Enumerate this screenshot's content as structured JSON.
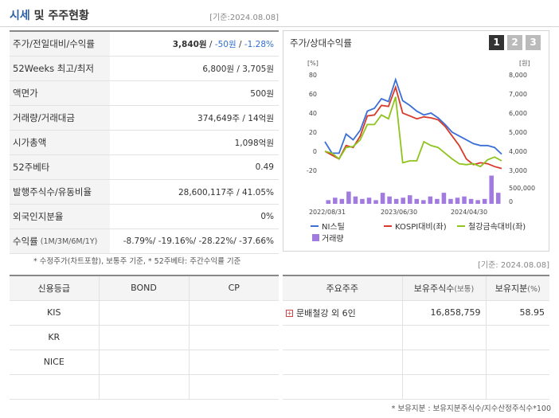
{
  "header": {
    "title_main": "시세",
    "title_rest": "및 주주현황",
    "date": "[기준:2024.08.08]"
  },
  "quote_rows": [
    {
      "label": "주가/전일대비/수익률",
      "label_small": "",
      "value_parts": [
        "3,840원",
        " / ",
        "-50원",
        " / ",
        "-1.28%"
      ]
    },
    {
      "label": "52Weeks 최고/최저",
      "label_small": "",
      "value": "6,800원 / 3,705원"
    },
    {
      "label": "액면가",
      "label_small": "",
      "value": "500원"
    },
    {
      "label": "거래량/거래대금",
      "label_small": "",
      "value": "374,649주 / 14억원"
    },
    {
      "label": "시가총액",
      "label_small": "",
      "value": "1,098억원"
    },
    {
      "label": "52주베타",
      "label_small": "",
      "value": "0.49"
    },
    {
      "label": "발행주식수/유동비율",
      "label_small": "",
      "value": "28,600,117주 / 41.05%"
    },
    {
      "label": "외국인지분율",
      "label_small": "",
      "value": "0%"
    },
    {
      "label": "수익률",
      "label_small": "(1M/3M/6M/1Y)",
      "value": "-8.79%/ -19.16%/ -28.22%/ -37.66%"
    }
  ],
  "note1": "* 수정주가(차트포함), 보통주 기준, * 52주베타: 주간수익률 기준",
  "chart_panel": {
    "title": "주가/상대수익률",
    "tabs": [
      "1",
      "2",
      "3"
    ],
    "active_tab": "1"
  },
  "chart_data": {
    "type": "line",
    "left_unit": "[%]",
    "right_unit": "[원]",
    "y_left_ticks": [
      "80",
      "60",
      "40",
      "20",
      "0",
      "-20"
    ],
    "y_right_ticks": [
      "8,000",
      "7,000",
      "6,000",
      "5,000",
      "4,000",
      "3,000"
    ],
    "y_volume_ticks": [
      "500,000",
      "0"
    ],
    "y_left_range": [
      -20,
      80
    ],
    "x_labels": [
      "2022/08/31",
      "2023/06/30",
      "2024/04/30"
    ],
    "series": [
      {
        "name": "NI스틸",
        "color": "#3a6fd8",
        "values": [
          10,
          -2,
          -2,
          18,
          12,
          22,
          42,
          45,
          55,
          52,
          75,
          53,
          48,
          42,
          38,
          40,
          35,
          28,
          20,
          16,
          12,
          8,
          6,
          6,
          4,
          -3
        ]
      },
      {
        "name": "KOSPI대비(좌)",
        "color": "#d83a2a",
        "values": [
          0,
          -4,
          -8,
          6,
          4,
          16,
          37,
          38,
          48,
          47,
          67,
          40,
          37,
          34,
          36,
          35,
          33,
          26,
          16,
          6,
          -8,
          -14,
          -12,
          -13,
          -16,
          -18
        ]
      },
      {
        "name": "철강금속대비(좌)",
        "color": "#8fc31f",
        "values": [
          0,
          -2,
          -8,
          4,
          5,
          12,
          28,
          28,
          38,
          34,
          57,
          -12,
          -10,
          -10,
          10,
          6,
          4,
          -2,
          -8,
          -13,
          -14,
          -13,
          -16,
          -9,
          -6,
          -10
        ]
      }
    ],
    "volume": {
      "name": "거래량",
      "color": "#a17be0",
      "values": [
        0.15,
        0.25,
        0.2,
        0.5,
        0.3,
        0.2,
        0.25,
        0.15,
        0.45,
        0.3,
        0.2,
        0.25,
        0.35,
        0.2,
        0.15,
        0.3,
        0.2,
        0.45,
        0.2,
        0.25,
        0.3,
        0.2,
        0.15,
        0.2,
        1.15,
        0.45
      ]
    }
  },
  "date2": "[기준: 2024.08.08]",
  "credit": {
    "headers": [
      "신용등급",
      "BOND",
      "CP"
    ],
    "rows": [
      [
        "KIS",
        "",
        ""
      ],
      [
        "KR",
        "",
        ""
      ],
      [
        "NICE",
        "",
        ""
      ],
      [
        "",
        "",
        ""
      ]
    ]
  },
  "holders": {
    "header_main": "주요주주",
    "header_shares": "보유주식수",
    "header_shares_unit": "(보통)",
    "header_ratio": "보유지분",
    "header_ratio_unit": "(%)",
    "rows": [
      {
        "name": "문배철강 외 6인",
        "shares": "16,858,759",
        "ratio": "58.95"
      }
    ]
  },
  "note2": "* 보유지분 : 보유지분주식수/지수산정주식수*100"
}
